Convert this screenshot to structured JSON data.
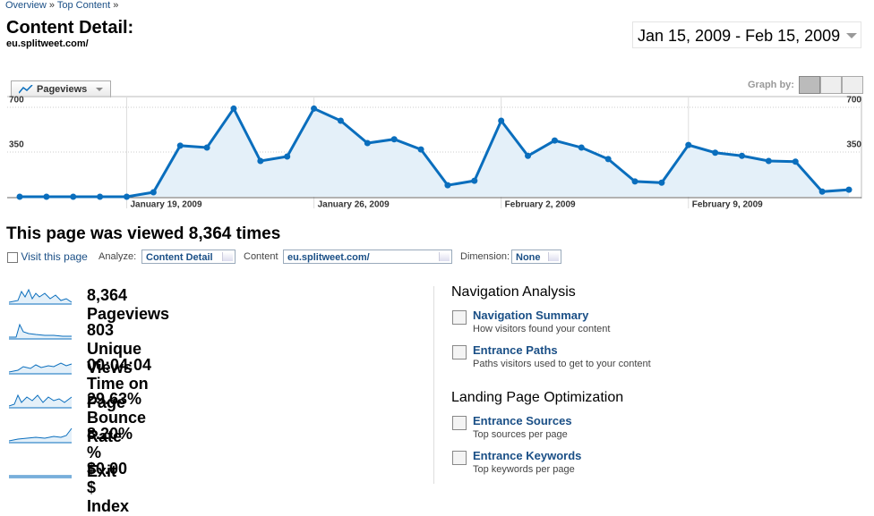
{
  "breadcrumb": {
    "items": [
      "Overview",
      "Top Content"
    ],
    "separator": "»"
  },
  "header": {
    "title": "Content Detail:",
    "url": "eu.splitweet.com/",
    "date_range": "Jan 15, 2009 - Feb 15, 2009"
  },
  "graph_controls": {
    "metric_button": "Pageviews",
    "graph_by": "Graph by:"
  },
  "chart_data": {
    "type": "line",
    "categories": [
      null,
      null,
      null,
      null,
      "January 19, 2009",
      null,
      null,
      null,
      null,
      null,
      null,
      "January 26, 2009",
      null,
      null,
      null,
      null,
      null,
      null,
      "February 2, 2009",
      null,
      null,
      null,
      null,
      null,
      null,
      "February 9, 2009",
      null,
      null,
      null,
      null,
      null,
      null
    ],
    "values": [
      0,
      0,
      0,
      0,
      0,
      35,
      400,
      385,
      690,
      280,
      315,
      690,
      595,
      420,
      450,
      370,
      90,
      125,
      595,
      320,
      440,
      385,
      295,
      120,
      110,
      405,
      345,
      320,
      280,
      275,
      40,
      55
    ],
    "color": "#0a6ebd",
    "ylim": [
      0,
      770
    ],
    "yticks": [
      350,
      700
    ],
    "grid": true
  },
  "summary": {
    "heading": "This page was viewed 8,364 times",
    "visit_link": "Visit this page",
    "analyze_label": "Analyze:",
    "analyze_value": "Content Detail",
    "content_label": "Content",
    "content_value": "eu.splitweet.com/",
    "dimension_label": "Dimension:",
    "dimension_value": "None"
  },
  "metrics": [
    {
      "value": "8,364",
      "label": "Pageviews"
    },
    {
      "value": "803",
      "label": "Unique Views"
    },
    {
      "value": "00:04:04",
      "label": "Time on Page"
    },
    {
      "value": "29.63%",
      "label": "Bounce Rate"
    },
    {
      "value": "8.20%",
      "label": "% Exit"
    },
    {
      "value": "$0.00",
      "label": "$ Index"
    }
  ],
  "sections": [
    {
      "title": "Navigation Analysis",
      "links": [
        {
          "label": "Navigation Summary",
          "description": "How visitors found your content"
        },
        {
          "label": "Entrance Paths",
          "description": "Paths visitors used to get to your content"
        }
      ]
    },
    {
      "title": "Landing Page Optimization",
      "links": [
        {
          "label": "Entrance Sources",
          "description": "Top sources per page"
        },
        {
          "label": "Entrance Keywords",
          "description": "Top keywords per page"
        }
      ]
    }
  ]
}
